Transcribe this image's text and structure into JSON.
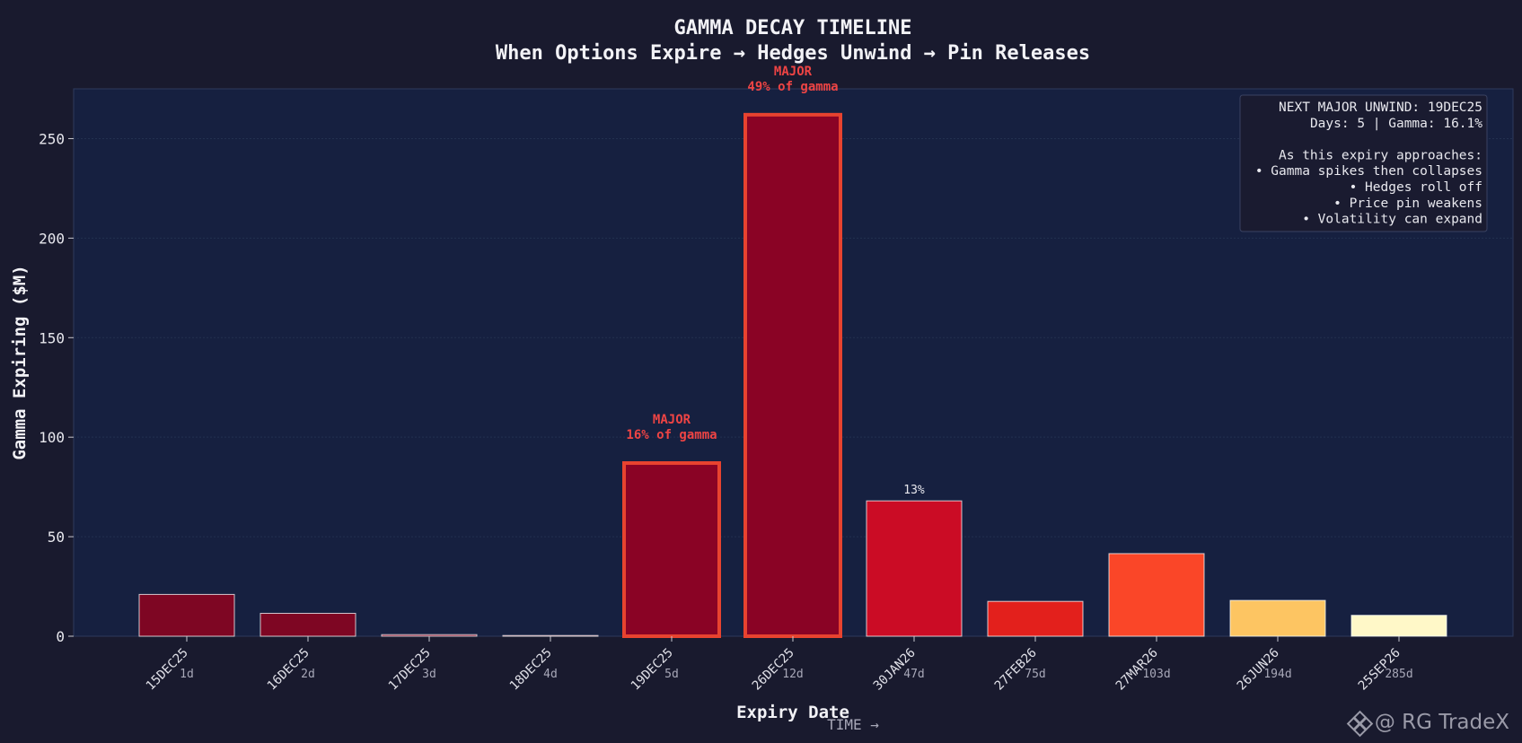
{
  "chart_data": {
    "type": "bar",
    "title": "GAMMA DECAY TIMELINE",
    "subtitle": "When Options Expire → Hedges Unwind → Pin Releases",
    "xlabel": "Expiry Date",
    "ylabel": "Gamma Expiring ($M)",
    "x_arrow_label": "TIME →",
    "ylim": [
      0,
      275
    ],
    "yticks": [
      0,
      50,
      100,
      150,
      200,
      250
    ],
    "grid": true,
    "categories": [
      "15DEC25",
      "16DEC25",
      "17DEC25",
      "18DEC25",
      "19DEC25",
      "26DEC25",
      "30JAN26",
      "27FEB26",
      "27MAR26",
      "26JUN26",
      "25SEP26"
    ],
    "days": [
      "1d",
      "2d",
      "3d",
      "4d",
      "5d",
      "12d",
      "47d",
      "75d",
      "103d",
      "194d",
      "285d"
    ],
    "values": [
      21,
      11.5,
      0.8,
      0.2,
      87,
      262,
      68,
      17.5,
      41.5,
      18,
      10.5
    ],
    "colors": [
      "#7e0623",
      "#7e0623",
      "#7e0623",
      "#7e0623",
      "#8a0325",
      "#8a0325",
      "#cb0c25",
      "#e3201c",
      "#fa4628",
      "#fdc562",
      "#fff8c8"
    ],
    "highlighted": [
      false,
      false,
      false,
      false,
      true,
      true,
      false,
      false,
      false,
      false,
      false
    ],
    "annotations": [
      {
        "index": 4,
        "line1": "MAJOR",
        "line2": "16% of gamma",
        "style": "major"
      },
      {
        "index": 5,
        "line1": "MAJOR",
        "line2": "49% of gamma",
        "style": "major"
      },
      {
        "index": 6,
        "line1": "13%",
        "style": "pct"
      }
    ],
    "info_box": {
      "lines": [
        "NEXT MAJOR UNWIND: 19DEC25",
        "Days: 5 | Gamma: 16.1%",
        "",
        "As this expiry approaches:",
        "• Gamma spikes then collapses",
        "• Hedges roll off",
        "• Price pin weakens",
        "• Volatility can expand"
      ],
      "placement": "top-right"
    },
    "colors_theme": {
      "background": "#191a2e",
      "plot_background": "#162040",
      "highlight_edge": "#e8432f"
    }
  },
  "watermark": {
    "text": "@ RG TradeX"
  }
}
